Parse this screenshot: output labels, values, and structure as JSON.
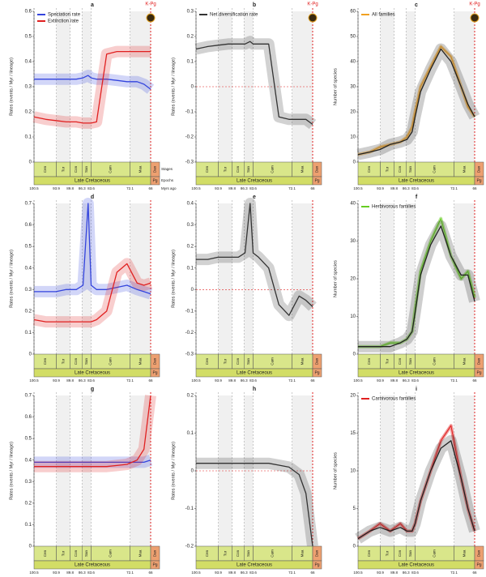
{
  "time_axis": {
    "xlim": [
      100.5,
      66
    ],
    "xticks": [
      100.5,
      93.9,
      89.8,
      86.3,
      83.6,
      72.1,
      66
    ],
    "stages": [
      "Cen",
      "Tur",
      "Con",
      "San",
      "Cam",
      "Maa",
      "Dan"
    ],
    "epochs": [
      "Late Cretaceous",
      "Pg"
    ],
    "row_labels": [
      "Stages",
      "Epochs",
      "Myrs ago"
    ],
    "event_label": "K-Pg"
  },
  "chart_data": [
    {
      "type": "line",
      "panel": "a",
      "y_label": "Rates (events / Myr / lineage)",
      "ylim": [
        0,
        0.6
      ],
      "yticks": [
        0,
        0.1,
        0.2,
        0.3,
        0.4,
        0.5,
        0.6
      ],
      "x": [
        100.5,
        97,
        94,
        91,
        88,
        86,
        84.5,
        83.6,
        82,
        79,
        76,
        73,
        70,
        68,
        66
      ],
      "series": [
        {
          "name": "Speciation rate",
          "color": "#3344dd",
          "values": [
            0.33,
            0.33,
            0.33,
            0.33,
            0.33,
            0.335,
            0.345,
            0.335,
            0.33,
            0.33,
            0.325,
            0.32,
            0.32,
            0.31,
            0.29
          ]
        },
        {
          "name": "Extinction rate",
          "color": "#e02020",
          "values": [
            0.18,
            0.17,
            0.165,
            0.16,
            0.16,
            0.155,
            0.155,
            0.155,
            0.16,
            0.43,
            0.44,
            0.44,
            0.44,
            0.44,
            0.44
          ]
        }
      ]
    },
    {
      "type": "line",
      "panel": "b",
      "y_label": "Rates (events / Myr / lineage)",
      "ylim": [
        -0.3,
        0.3
      ],
      "yticks": [
        -0.3,
        -0.2,
        -0.1,
        0,
        0.1,
        0.2,
        0.3
      ],
      "x": [
        100.5,
        97,
        94,
        91,
        88,
        86,
        84.5,
        83.6,
        82,
        79,
        76,
        73,
        70,
        68,
        66
      ],
      "series": [
        {
          "name": "Net diversification rate",
          "color": "#333333",
          "values": [
            0.15,
            0.16,
            0.165,
            0.17,
            0.17,
            0.17,
            0.18,
            0.17,
            0.17,
            0.17,
            -0.12,
            -0.13,
            -0.13,
            -0.13,
            -0.15
          ]
        }
      ]
    },
    {
      "type": "line",
      "panel": "c",
      "y_label": "Number of species",
      "ylim": [
        0,
        60
      ],
      "yticks": [
        0,
        10,
        20,
        30,
        40,
        50,
        60
      ],
      "x": [
        100.5,
        97,
        94,
        91,
        88,
        86,
        84.5,
        83.6,
        82,
        79,
        76,
        73,
        70,
        68,
        66
      ],
      "series": [
        {
          "name": "All families",
          "color": "#f0a020",
          "values": [
            3,
            4,
            6,
            7,
            8,
            10,
            14,
            20,
            30,
            38,
            46,
            42,
            30,
            22,
            18
          ]
        },
        {
          "color": "#222222",
          "values": [
            3,
            4,
            5,
            7,
            8,
            9,
            12,
            18,
            28,
            37,
            45,
            40,
            30,
            23,
            18
          ]
        }
      ]
    },
    {
      "type": "line",
      "panel": "d",
      "y_label": "Rates (events / Myr / lineage)",
      "ylim": [
        0,
        0.7
      ],
      "yticks": [
        0,
        0.1,
        0.2,
        0.3,
        0.4,
        0.5,
        0.6,
        0.7
      ],
      "x": [
        100.5,
        97,
        94,
        91,
        88,
        86,
        84.5,
        83.6,
        82,
        79,
        76,
        73,
        70,
        68,
        66
      ],
      "series": [
        {
          "color": "#3344dd",
          "values": [
            0.29,
            0.29,
            0.29,
            0.3,
            0.3,
            0.32,
            0.7,
            0.32,
            0.3,
            0.3,
            0.31,
            0.32,
            0.3,
            0.29,
            0.28
          ]
        },
        {
          "color": "#e02020",
          "values": [
            0.16,
            0.15,
            0.15,
            0.15,
            0.15,
            0.15,
            0.15,
            0.15,
            0.16,
            0.2,
            0.38,
            0.42,
            0.33,
            0.32,
            0.33
          ]
        }
      ]
    },
    {
      "type": "line",
      "panel": "e",
      "y_label": "Rates (events / Myr / lineage)",
      "ylim": [
        -0.3,
        0.4
      ],
      "yticks": [
        -0.3,
        -0.2,
        -0.1,
        0,
        0.1,
        0.2,
        0.3,
        0.4
      ],
      "x": [
        100.5,
        97,
        94,
        91,
        88,
        86,
        84.5,
        83.6,
        82,
        79,
        76,
        73,
        70,
        68,
        66
      ],
      "series": [
        {
          "color": "#333333",
          "values": [
            0.14,
            0.14,
            0.15,
            0.15,
            0.15,
            0.17,
            0.4,
            0.17,
            0.15,
            0.1,
            -0.07,
            -0.12,
            -0.03,
            -0.05,
            -0.08
          ]
        }
      ]
    },
    {
      "type": "line",
      "panel": "f",
      "y_label": "Number of species",
      "ylim": [
        0,
        40
      ],
      "yticks": [
        0,
        10,
        20,
        30,
        40
      ],
      "x": [
        100.5,
        97,
        94,
        91,
        88,
        86,
        84.5,
        83.6,
        82,
        79,
        76,
        73,
        70,
        68,
        66
      ],
      "series": [
        {
          "name": "Herbivorous families",
          "color": "#66cc22",
          "values": [
            2,
            2,
            2,
            3,
            3,
            4,
            6,
            12,
            22,
            30,
            36,
            26,
            20,
            22,
            15
          ]
        },
        {
          "color": "#222222",
          "values": [
            2,
            2,
            2,
            2,
            3,
            4,
            6,
            11,
            21,
            29,
            34,
            26,
            21,
            21,
            14
          ]
        }
      ]
    },
    {
      "type": "line",
      "panel": "g",
      "y_label": "Rates (events / Myr / lineage)",
      "ylim": [
        0,
        0.7
      ],
      "yticks": [
        0,
        0.1,
        0.2,
        0.3,
        0.4,
        0.5,
        0.6,
        0.7
      ],
      "x": [
        100.5,
        97,
        94,
        91,
        88,
        86,
        84.5,
        83.6,
        82,
        79,
        76,
        73,
        70,
        68,
        66
      ],
      "series": [
        {
          "color": "#3344dd",
          "values": [
            0.39,
            0.39,
            0.39,
            0.39,
            0.39,
            0.39,
            0.39,
            0.39,
            0.39,
            0.39,
            0.39,
            0.39,
            0.39,
            0.39,
            0.4
          ]
        },
        {
          "color": "#e02020",
          "values": [
            0.37,
            0.37,
            0.37,
            0.37,
            0.37,
            0.37,
            0.37,
            0.37,
            0.37,
            0.37,
            0.375,
            0.38,
            0.4,
            0.45,
            0.7
          ]
        }
      ]
    },
    {
      "type": "line",
      "panel": "h",
      "y_label": "Rates (events / Myr / lineage)",
      "ylim": [
        -0.2,
        0.2
      ],
      "yticks": [
        -0.2,
        -0.1,
        0,
        0.1,
        0.2
      ],
      "x": [
        100.5,
        97,
        94,
        91,
        88,
        86,
        84.5,
        83.6,
        82,
        79,
        76,
        73,
        70,
        68,
        66
      ],
      "series": [
        {
          "color": "#333333",
          "values": [
            0.02,
            0.02,
            0.02,
            0.02,
            0.02,
            0.02,
            0.02,
            0.02,
            0.02,
            0.02,
            0.015,
            0.01,
            -0.01,
            -0.06,
            -0.2
          ]
        }
      ]
    },
    {
      "type": "line",
      "panel": "i",
      "y_label": "Number of species",
      "ylim": [
        0,
        20
      ],
      "yticks": [
        0,
        5,
        10,
        15,
        20
      ],
      "x": [
        100.5,
        97,
        94,
        91,
        88,
        86,
        84.5,
        83.6,
        82,
        79,
        76,
        73,
        70,
        68,
        66
      ],
      "series": [
        {
          "name": "Carnivorous families",
          "color": "#e02020",
          "values": [
            1,
            2,
            3,
            2,
            3,
            2,
            2,
            3,
            6,
            10,
            14,
            16,
            9,
            5,
            2
          ]
        },
        {
          "color": "#222222",
          "values": [
            1,
            2,
            2.5,
            2,
            2.5,
            2,
            2,
            3,
            6,
            10,
            13,
            14,
            9,
            5,
            2
          ]
        }
      ]
    }
  ]
}
